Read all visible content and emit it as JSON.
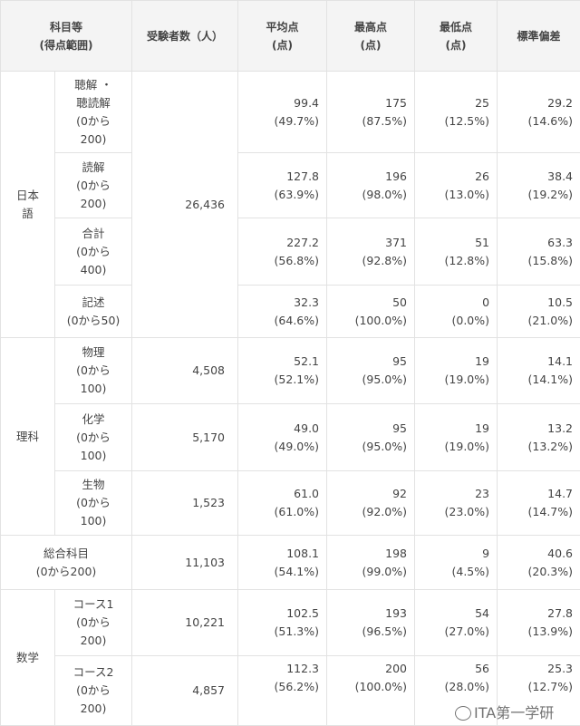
{
  "header": {
    "subject": "科目等\n(得点範囲)",
    "examinees": "受験者数（人）",
    "mean": "平均点\n(点)",
    "max": "最高点\n(点)",
    "min": "最低点\n(点)",
    "sd": "標準偏差"
  },
  "rows": [
    {
      "group": "日本\n語",
      "subject": "聴解 ・\n聴読解\n(0から\n200)",
      "examinees": "26,436",
      "mean": "99.4\n(49.7%)",
      "max": "175\n(87.5%)",
      "min": "25\n(12.5%)",
      "sd": "29.2\n(14.6%)"
    },
    {
      "group": "日本\n語",
      "subject": "読解\n(0から\n200)",
      "mean": "127.8\n(63.9%)",
      "max": "196\n(98.0%)",
      "min": "26\n(13.0%)",
      "sd": "38.4\n(19.2%)"
    },
    {
      "group": "日本\n語",
      "subject": "合計\n(0から\n400)",
      "mean": "227.2\n(56.8%)",
      "max": "371\n(92.8%)",
      "min": "51\n(12.8%)",
      "sd": "63.3\n(15.8%)"
    },
    {
      "group": "日本\n語",
      "subject": "記述\n(0から50)",
      "mean": "32.3\n(64.6%)",
      "max": "50\n(100.0%)",
      "min": "0\n(0.0%)",
      "sd": "10.5\n(21.0%)"
    },
    {
      "group": "理科",
      "subject": "物理\n(0から\n100)",
      "examinees": "4,508",
      "mean": "52.1\n(52.1%)",
      "max": "95\n(95.0%)",
      "min": "19\n(19.0%)",
      "sd": "14.1\n(14.1%)"
    },
    {
      "group": "理科",
      "subject": "化学\n(0から\n100)",
      "examinees": "5,170",
      "mean": "49.0\n(49.0%)",
      "max": "95\n(95.0%)",
      "min": "19\n(19.0%)",
      "sd": "13.2\n(13.2%)"
    },
    {
      "group": "理科",
      "subject": "生物\n(0から\n100)",
      "examinees": "1,523",
      "mean": "61.0\n(61.0%)",
      "max": "92\n(92.0%)",
      "min": "23\n(23.0%)",
      "sd": "14.7\n(14.7%)"
    },
    {
      "group": "総合科目\n(0から200)",
      "subject": null,
      "examinees": "11,103",
      "mean": "108.1\n(54.1%)",
      "max": "198\n(99.0%)",
      "min": "9\n(4.5%)",
      "sd": "40.6\n(20.3%)"
    },
    {
      "group": "数学",
      "subject": "コース1\n(0から\n200)",
      "examinees": "10,221",
      "mean": "102.5\n(51.3%)",
      "max": "193\n(96.5%)",
      "min": "54\n(27.0%)",
      "sd": "27.8\n(13.9%)"
    },
    {
      "group": "数学",
      "subject": "コース2\n(0から\n200)",
      "examinees": "4,857",
      "mean": "112.3\n(56.2%)",
      "max": "200\n(100.0%)",
      "min": "56\n(28.0%)",
      "sd": "25.3\n(12.7%)"
    }
  ],
  "watermark": "ITA第一学研"
}
